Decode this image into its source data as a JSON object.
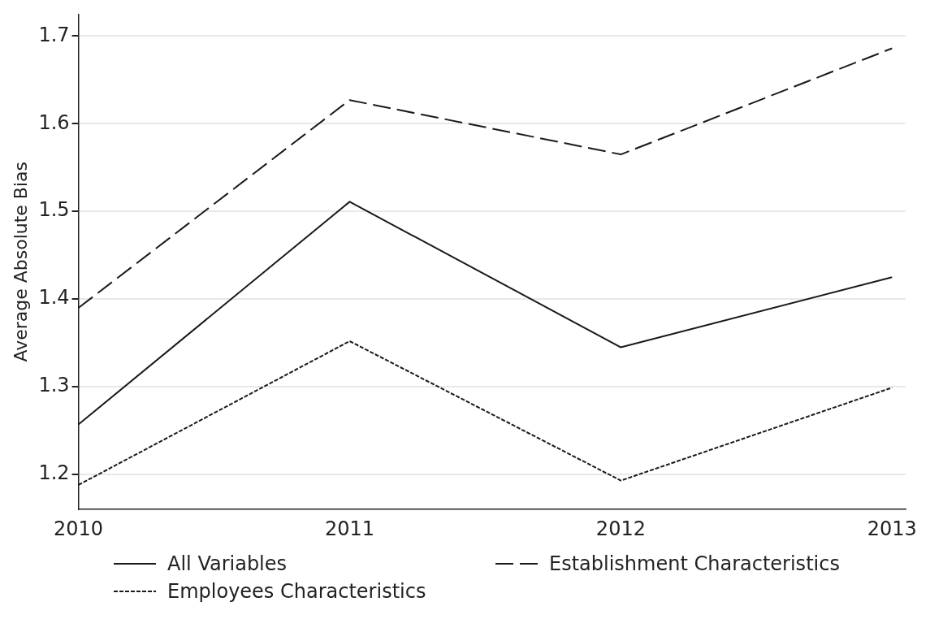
{
  "chart_data": {
    "type": "line",
    "ylabel": "Average Absolute Bias",
    "x": [
      2010,
      2011,
      2012,
      2013
    ],
    "xlim": [
      2010,
      2013.05
    ],
    "xticks": [
      2010,
      2011,
      2012,
      2013
    ],
    "ylim": [
      1.16,
      1.725
    ],
    "yticks": [
      1.2,
      1.3,
      1.4,
      1.5,
      1.6,
      1.7
    ],
    "grid": "y",
    "legend": "bottom",
    "marker": "none",
    "series": [
      {
        "name": "All Variables",
        "color": "#1a1a1a",
        "line_style": "solid",
        "values": [
          1.257,
          1.511,
          1.345,
          1.425
        ]
      },
      {
        "name": "Establishment Characteristics",
        "color": "#1a1a1a",
        "line_style": "dashed",
        "values": [
          1.39,
          1.627,
          1.565,
          1.686
        ]
      },
      {
        "name": "Employees Characteristics",
        "color": "#1a1a1a",
        "line_style": "dotted",
        "values": [
          1.188,
          1.352,
          1.193,
          1.299
        ]
      }
    ]
  }
}
